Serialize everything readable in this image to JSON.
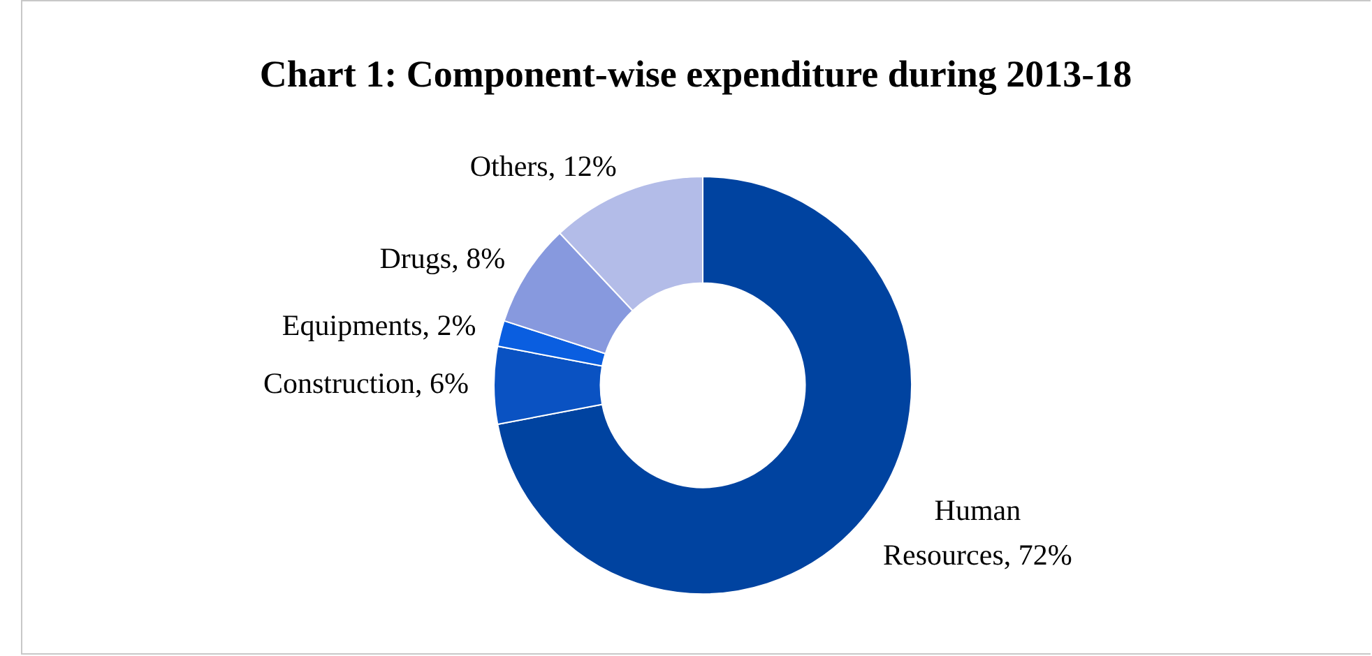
{
  "chart_data": {
    "type": "donut",
    "title": "Chart 1: Component-wise expenditure during 2013-18",
    "categories": [
      "Human Resources",
      "Construction",
      "Equipments",
      "Drugs",
      "Others"
    ],
    "values": [
      72,
      6,
      2,
      8,
      12
    ],
    "value_labels": [
      "72%",
      "6%",
      "2%",
      "8%",
      "12%"
    ],
    "colors": [
      "#0043a0",
      "#0a52c2",
      "#0a5ee0",
      "#8799de",
      "#b3bce8"
    ],
    "legend": false
  }
}
